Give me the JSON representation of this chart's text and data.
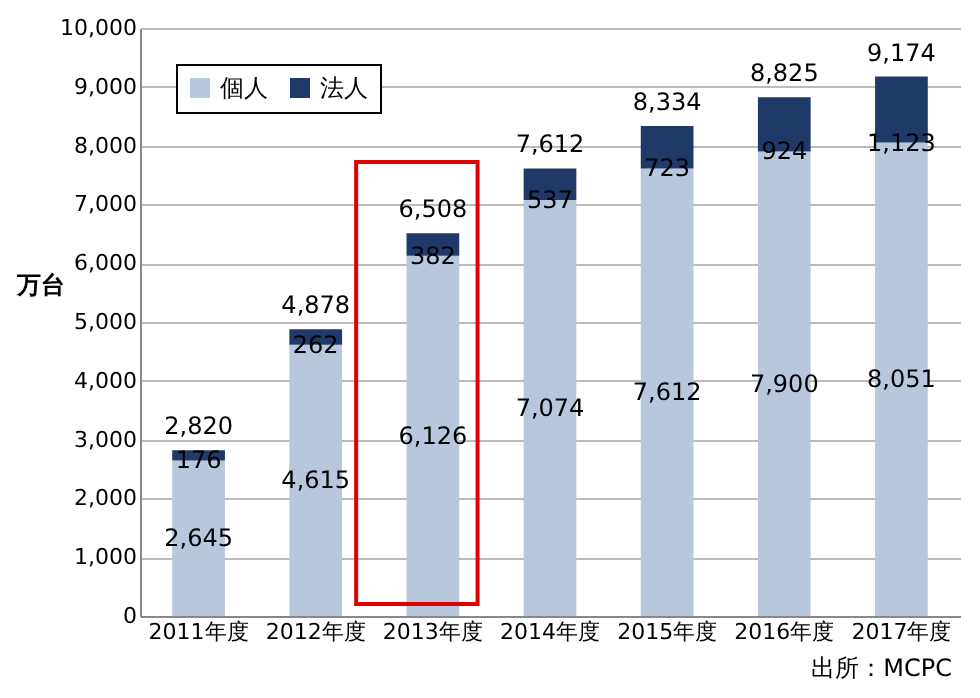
{
  "chart_data": {
    "type": "bar",
    "stacked": true,
    "ylabel": "万台",
    "categories": [
      "2011年度",
      "2012年度",
      "2013年度",
      "2014年度",
      "2015年度",
      "2016年度",
      "2017年度"
    ],
    "series": [
      {
        "name": "個人",
        "color": "#b9c7dc",
        "values": [
          2645,
          4615,
          6126,
          7074,
          7612,
          7900,
          8051
        ],
        "value_labels": [
          "2,645",
          "4,615",
          "6,126",
          "7,074",
          "7,612",
          "7,900",
          "8,051"
        ]
      },
      {
        "name": "法人",
        "color": "#1f3a68",
        "values": [
          176,
          262,
          382,
          537,
          723,
          924,
          1123
        ],
        "value_labels": [
          "176",
          "262",
          "382",
          "537",
          "723",
          "924",
          "1,123"
        ]
      }
    ],
    "totals": [
      "2,820",
      "4,878",
      "6,508",
      "7,612",
      "8,334",
      "8,825",
      "9,174"
    ],
    "ylim": [
      0,
      10000
    ],
    "yticks": [
      0,
      {
        "value": 1000,
        "label": "1,000"
      },
      {
        "value": 2000,
        "label": "2,000"
      },
      {
        "value": 3000,
        "label": "3,000"
      },
      {
        "value": 4000,
        "label": "4,000"
      },
      {
        "value": 5000,
        "label": "5,000"
      },
      {
        "value": 6000,
        "label": "6,000"
      },
      {
        "value": 7000,
        "label": "7,000"
      },
      {
        "value": 8000,
        "label": "8,000"
      },
      {
        "value": 9000,
        "label": "9,000"
      },
      {
        "value": 10000,
        "label": "10,000"
      }
    ],
    "grid": "y",
    "legend": "top left",
    "annotations": [
      "出所：MCPC"
    ]
  }
}
